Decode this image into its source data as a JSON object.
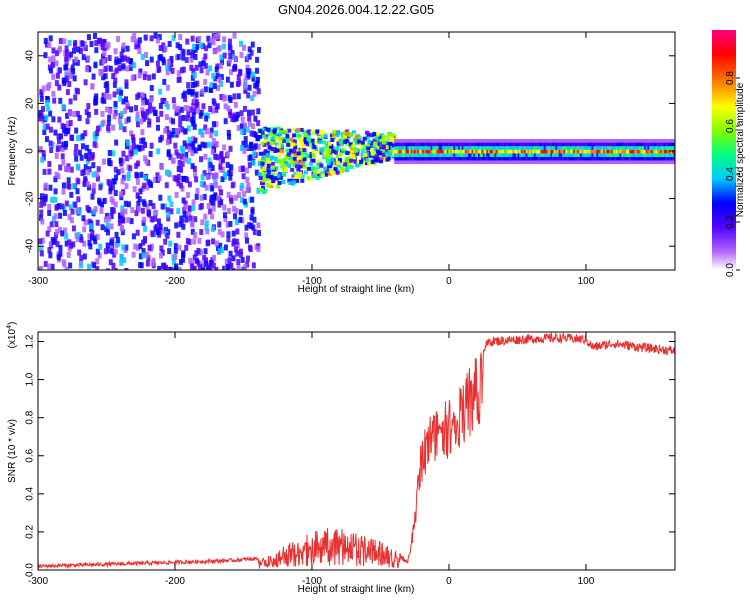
{
  "title": "GN04.2026.004.12.22.G05",
  "chart_data": [
    {
      "type": "heatmap",
      "xlabel": "Height of straight line (km)",
      "ylabel": "Frequency (Hz)",
      "xlim": [
        -300,
        165
      ],
      "ylim": [
        -50,
        50
      ],
      "xticks": [
        "-300",
        "-200",
        "-100",
        "0",
        "100"
      ],
      "yticks": [
        "40",
        "20",
        "0",
        "-20",
        "-40"
      ],
      "colorbar": {
        "label": "Normalized spectral amplitude",
        "range": [
          0,
          1
        ],
        "ticks": [
          "0.0",
          "0.2",
          "0.4",
          "0.6",
          "0.8"
        ],
        "colormap": [
          "#ffffff",
          "#b060ff",
          "#5000ff",
          "#0000ff",
          "#00c8ff",
          "#00ff80",
          "#80ff00",
          "#ffff00",
          "#ff8000",
          "#ff0000",
          "#ff0080"
        ]
      },
      "regions": [
        {
          "x": [
            -300,
            -140
          ],
          "description_value": 0.25
        },
        {
          "x": [
            -140,
            -40
          ],
          "description_value": 0.45
        },
        {
          "x": [
            -40,
            165
          ],
          "description_value": 0.8
        }
      ]
    },
    {
      "type": "line",
      "xlabel": "Height of straight line (km)",
      "ylabel": "SNR (10 * v/v)",
      "multiplier": "(x10",
      "multiplier_exp": "4",
      "xlim": [
        -300,
        165
      ],
      "ylim": [
        0,
        1.25
      ],
      "xticks": [
        "-300",
        "-200",
        "-100",
        "0",
        "100"
      ],
      "yticks": [
        "1.2",
        "1.0",
        "0.8",
        "0.6",
        "0.4",
        "0.2",
        "0.0"
      ],
      "series_color": "#e83030",
      "x": [
        -300,
        -250,
        -200,
        -160,
        -140,
        -130,
        -120,
        -100,
        -80,
        -60,
        -40,
        -30,
        -25,
        -20,
        -15,
        -10,
        0,
        10,
        20,
        30,
        50,
        80,
        100,
        105,
        120,
        140,
        165
      ],
      "y": [
        0.02,
        0.03,
        0.04,
        0.05,
        0.06,
        0.08,
        0.14,
        0.2,
        0.24,
        0.18,
        0.12,
        0.05,
        0.3,
        0.7,
        0.8,
        0.85,
        0.9,
        1.0,
        1.13,
        1.2,
        1.21,
        1.22,
        1.21,
        1.17,
        1.19,
        1.17,
        1.15
      ]
    }
  ]
}
